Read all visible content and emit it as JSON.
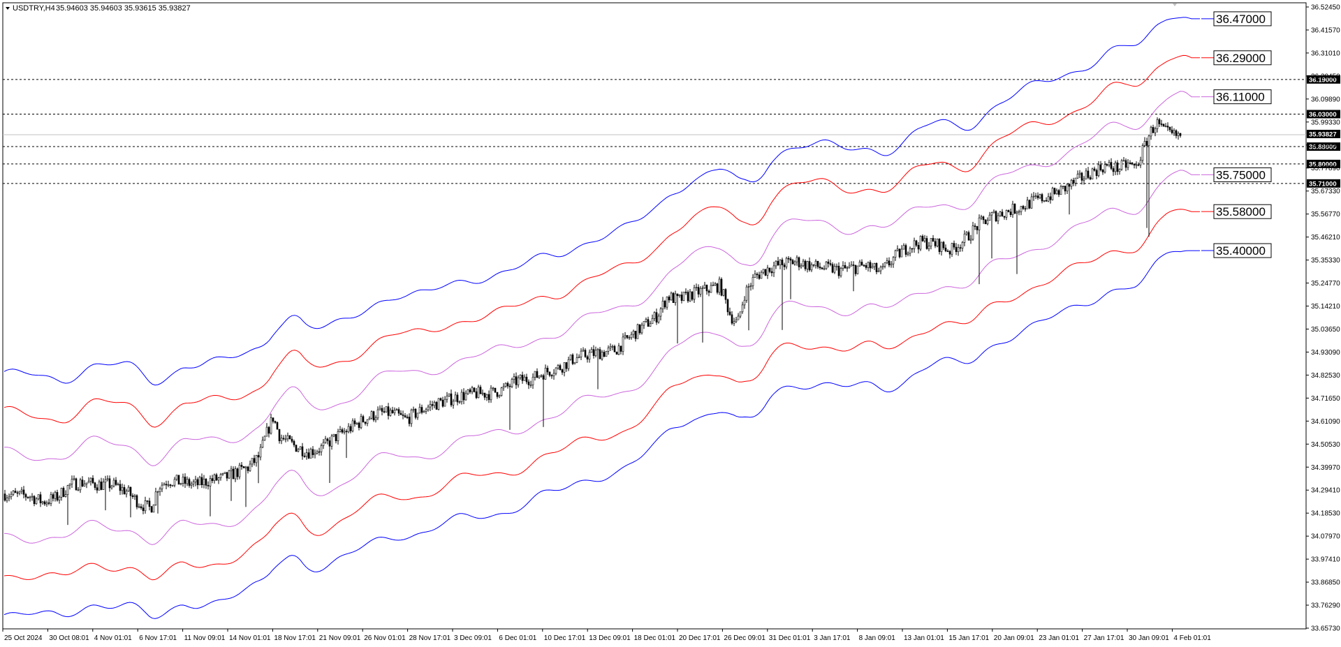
{
  "window": {
    "symbol_header": "USDTRY,H4",
    "ohlc_header": "35.94603 35.94603 35.93615 35.93827"
  },
  "colors": {
    "outer_band": "#0000ff",
    "middle_band": "#ff0000",
    "inner_band": "#cc66dd",
    "candles": "#000000",
    "dashed_lines": "#000000",
    "current_price_line": "#c0c0c0"
  },
  "chart_data": {
    "type": "candlestick",
    "title": "",
    "ylim": [
      33.6573,
      36.5245
    ],
    "y_ticks": [
      "36.52450",
      "36.41570",
      "36.31010",
      "36.20450",
      "36.09890",
      "35.99330",
      "35.88450",
      "35.77890",
      "35.67330",
      "35.56770",
      "35.46210",
      "35.35330",
      "35.24770",
      "35.14210",
      "35.03650",
      "34.93090",
      "34.82530",
      "34.71650",
      "34.61090",
      "34.50530",
      "34.39970",
      "34.29410",
      "34.18530",
      "34.07970",
      "33.97410",
      "33.86850",
      "33.76290",
      "33.65730"
    ],
    "x_ticks": [
      "25 Oct 2024",
      "30 Oct 08:01",
      "4 Nov 01:01",
      "6 Nov 17:01",
      "11 Nov 09:01",
      "14 Nov 01:01",
      "18 Nov 17:01",
      "21 Nov 09:01",
      "26 Nov 01:01",
      "28 Nov 17:01",
      "3 Dec 09:01",
      "6 Dec 01:01",
      "10 Dec 17:01",
      "13 Dec 09:01",
      "18 Dec 01:01",
      "20 Dec 17:01",
      "26 Dec 09:01",
      "31 Dec 01:01",
      "3 Jan 17:01",
      "8 Jan 09:01",
      "13 Jan 01:01",
      "15 Jan 17:01",
      "20 Jan 09:01",
      "23 Jan 01:01",
      "27 Jan 17:01",
      "30 Jan 09:01",
      "4 Feb 01:01"
    ],
    "horizontal_lines": [
      "36.19000",
      "36.03000",
      "35.88000",
      "35.80000",
      "35.71000"
    ],
    "current_price": "35.93827",
    "band_end_labels": [
      "36.47000",
      "36.29000",
      "36.11000",
      "35.75000",
      "35.58000",
      "35.40000"
    ],
    "band_end_values": [
      36.47,
      36.29,
      36.11,
      35.75,
      35.58,
      35.4
    ],
    "mid_path": [
      [
        0,
        34.28
      ],
      [
        20,
        34.27
      ],
      [
        40,
        34.27
      ],
      [
        60,
        34.24
      ],
      [
        80,
        34.26
      ],
      [
        100,
        34.32
      ],
      [
        120,
        34.33
      ],
      [
        140,
        34.32
      ],
      [
        160,
        34.32
      ],
      [
        180,
        34.29
      ],
      [
        200,
        34.23
      ],
      [
        215,
        34.21
      ],
      [
        225,
        34.31
      ],
      [
        240,
        34.34
      ],
      [
        260,
        34.33
      ],
      [
        280,
        34.32
      ],
      [
        300,
        34.34
      ],
      [
        320,
        34.35
      ],
      [
        340,
        34.38
      ],
      [
        355,
        34.4
      ],
      [
        370,
        34.45
      ],
      [
        380,
        34.55
      ],
      [
        390,
        34.63
      ],
      [
        400,
        34.54
      ],
      [
        420,
        34.5
      ],
      [
        440,
        34.47
      ],
      [
        460,
        34.49
      ],
      [
        480,
        34.54
      ],
      [
        500,
        34.58
      ],
      [
        520,
        34.62
      ],
      [
        540,
        34.65
      ],
      [
        560,
        34.65
      ],
      [
        580,
        34.62
      ],
      [
        600,
        34.66
      ],
      [
        620,
        34.69
      ],
      [
        640,
        34.71
      ],
      [
        660,
        34.73
      ],
      [
        680,
        34.74
      ],
      [
        700,
        34.74
      ],
      [
        720,
        34.76
      ],
      [
        740,
        34.8
      ],
      [
        760,
        34.81
      ],
      [
        780,
        34.84
      ],
      [
        800,
        34.86
      ],
      [
        820,
        34.9
      ],
      [
        840,
        34.92
      ],
      [
        860,
        34.93
      ],
      [
        880,
        34.94
      ],
      [
        900,
        35.0
      ],
      [
        920,
        35.05
      ],
      [
        940,
        35.1
      ],
      [
        955,
        35.19
      ],
      [
        970,
        35.17
      ],
      [
        990,
        35.2
      ],
      [
        1010,
        35.22
      ],
      [
        1030,
        35.24
      ],
      [
        1045,
        35.1
      ],
      [
        1055,
        35.06
      ],
      [
        1065,
        35.2
      ],
      [
        1080,
        35.28
      ],
      [
        1100,
        35.32
      ],
      [
        1120,
        35.34
      ],
      [
        1140,
        35.35
      ],
      [
        1160,
        35.33
      ],
      [
        1180,
        35.32
      ],
      [
        1200,
        35.31
      ],
      [
        1220,
        35.32
      ],
      [
        1240,
        35.33
      ],
      [
        1260,
        35.3
      ],
      [
        1280,
        35.37
      ],
      [
        1300,
        35.42
      ],
      [
        1320,
        35.44
      ],
      [
        1340,
        35.43
      ],
      [
        1360,
        35.4
      ],
      [
        1380,
        35.45
      ],
      [
        1400,
        35.52
      ],
      [
        1420,
        35.56
      ],
      [
        1440,
        35.58
      ],
      [
        1460,
        35.6
      ],
      [
        1480,
        35.63
      ],
      [
        1500,
        35.65
      ],
      [
        1520,
        35.68
      ],
      [
        1540,
        35.72
      ],
      [
        1560,
        35.76
      ],
      [
        1580,
        35.79
      ],
      [
        1600,
        35.78
      ],
      [
        1615,
        35.8
      ],
      [
        1625,
        35.78
      ],
      [
        1635,
        35.86
      ],
      [
        1645,
        35.94
      ],
      [
        1655,
        35.99
      ],
      [
        1665,
        35.95
      ],
      [
        1680,
        35.93
      ]
    ]
  }
}
